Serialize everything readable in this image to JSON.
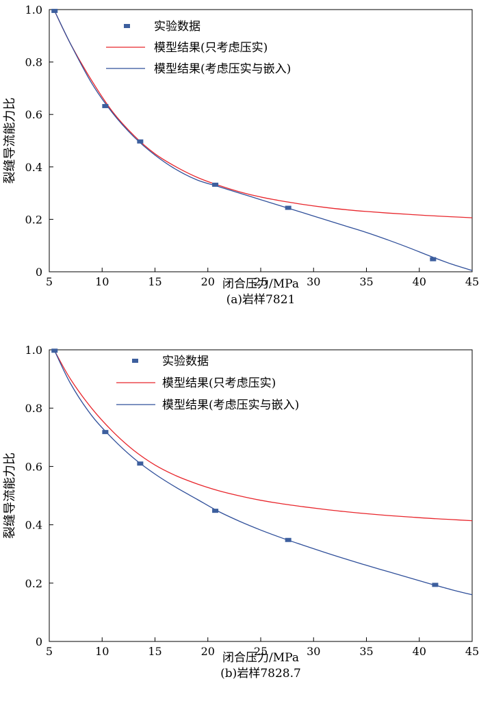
{
  "chart_data": [
    {
      "type": "line",
      "title": "(a)岩样7821",
      "xlabel": "闭合压力/MPa",
      "ylabel": "裂缝导流能力比",
      "xlim": [
        5,
        45
      ],
      "ylim": [
        0,
        1.0
      ],
      "xticks": [
        5,
        10,
        15,
        20,
        25,
        30,
        35,
        40,
        45
      ],
      "yticks": [
        0,
        0.2,
        0.4,
        0.6,
        0.8,
        1.0
      ],
      "grid": false,
      "legend_position": "top",
      "scatter": {
        "name": "实验数据",
        "color": "#3d5f9e",
        "x": [
          5.5,
          10.3,
          13.6,
          20.7,
          27.6,
          41.3
        ],
        "y": [
          0.995,
          0.632,
          0.497,
          0.332,
          0.244,
          0.048
        ]
      },
      "series": [
        {
          "name": "模型结果(只考虑压实)",
          "color": "#e8252b",
          "x": [
            5.5,
            7,
            9,
            11,
            13,
            15,
            17,
            19,
            21,
            23,
            25,
            27,
            29,
            31,
            33,
            35,
            37,
            39,
            41,
            43,
            45
          ],
          "y": [
            0.995,
            0.87,
            0.73,
            0.61,
            0.52,
            0.45,
            0.4,
            0.36,
            0.33,
            0.305,
            0.285,
            0.27,
            0.257,
            0.246,
            0.237,
            0.23,
            0.224,
            0.219,
            0.214,
            0.21,
            0.206
          ]
        },
        {
          "name": "模型结果(考虑压实与嵌入)",
          "color": "#2f4f9a",
          "x": [
            5.5,
            7,
            9,
            11,
            13,
            15,
            17,
            19,
            21,
            23,
            25,
            27,
            29,
            31,
            33,
            35,
            37,
            39,
            41,
            43,
            45
          ],
          "y": [
            0.995,
            0.87,
            0.72,
            0.605,
            0.515,
            0.445,
            0.39,
            0.35,
            0.325,
            0.3,
            0.275,
            0.25,
            0.225,
            0.2,
            0.175,
            0.15,
            0.122,
            0.092,
            0.06,
            0.03,
            0.005
          ]
        }
      ]
    },
    {
      "type": "line",
      "title": "(b)岩样7828.7",
      "xlabel": "闭合压力/MPa",
      "ylabel": "裂缝导流能力比",
      "xlim": [
        5,
        45
      ],
      "ylim": [
        0,
        1.0
      ],
      "xticks": [
        5,
        10,
        15,
        20,
        25,
        30,
        35,
        40,
        45
      ],
      "yticks": [
        0,
        0.2,
        0.4,
        0.6,
        0.8,
        1.0
      ],
      "grid": false,
      "legend_position": "top",
      "scatter": {
        "name": "实验数据",
        "color": "#3d5f9e",
        "x": [
          5.5,
          10.3,
          13.6,
          20.7,
          27.6,
          41.5
        ],
        "y": [
          0.997,
          0.718,
          0.61,
          0.448,
          0.348,
          0.194
        ]
      },
      "series": [
        {
          "name": "模型结果(只考虑压实)",
          "color": "#e8252b",
          "x": [
            5.5,
            7,
            9,
            11,
            13,
            15,
            17,
            19,
            21,
            23,
            25,
            27,
            29,
            31,
            33,
            35,
            37,
            39,
            41,
            43,
            45
          ],
          "y": [
            0.997,
            0.9,
            0.8,
            0.72,
            0.655,
            0.605,
            0.568,
            0.54,
            0.517,
            0.499,
            0.484,
            0.472,
            0.462,
            0.453,
            0.445,
            0.438,
            0.432,
            0.427,
            0.422,
            0.418,
            0.414
          ]
        },
        {
          "name": "模型结果(考虑压实与嵌入)",
          "color": "#2f4f9a",
          "x": [
            5.5,
            7,
            9,
            11,
            13,
            15,
            17,
            19,
            21,
            23,
            25,
            27,
            29,
            31,
            33,
            35,
            37,
            39,
            41,
            43,
            45
          ],
          "y": [
            0.997,
            0.885,
            0.775,
            0.695,
            0.628,
            0.574,
            0.528,
            0.487,
            0.446,
            0.412,
            0.382,
            0.355,
            0.33,
            0.306,
            0.283,
            0.261,
            0.24,
            0.219,
            0.198,
            0.178,
            0.16
          ]
        }
      ]
    }
  ]
}
